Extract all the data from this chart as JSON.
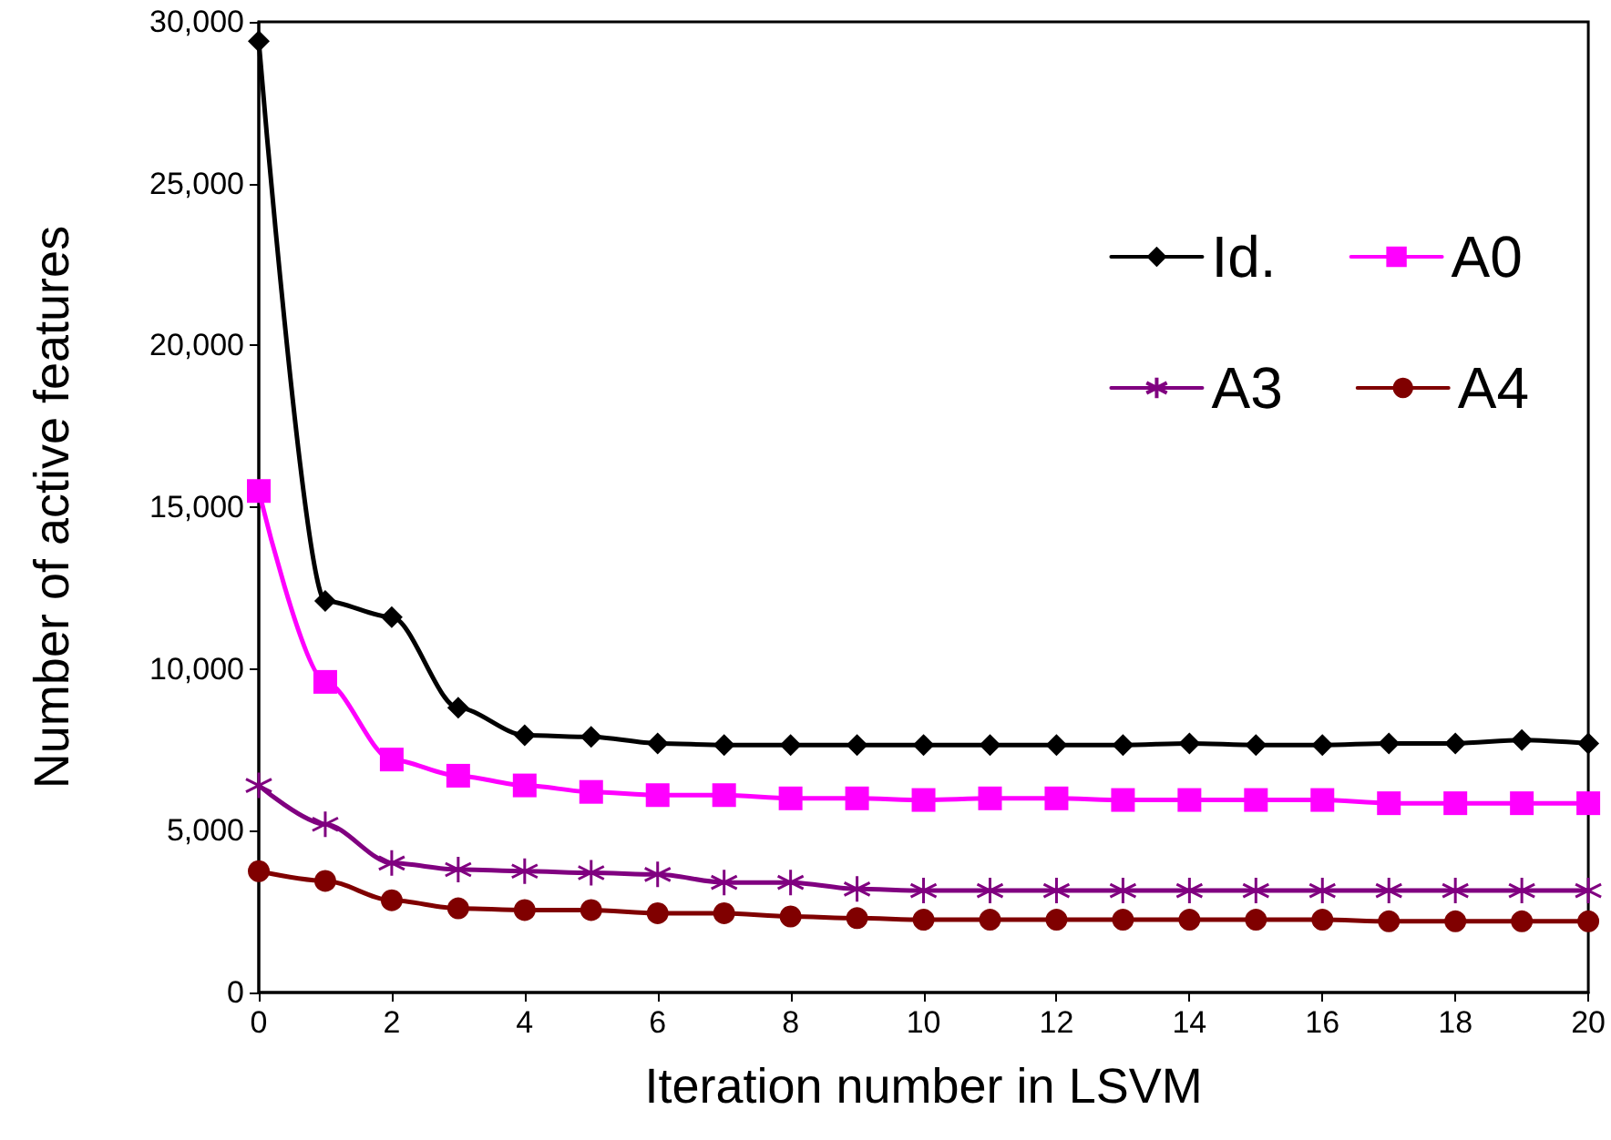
{
  "chart_data": {
    "type": "line",
    "xlabel": "Iteration number in LSVM",
    "ylabel": "Number of active features",
    "x": [
      0,
      1,
      2,
      3,
      4,
      5,
      6,
      7,
      8,
      9,
      10,
      11,
      12,
      13,
      14,
      15,
      16,
      17,
      18,
      19,
      20
    ],
    "xlim": [
      0,
      20
    ],
    "xticks": [
      0,
      2,
      4,
      6,
      8,
      10,
      12,
      14,
      16,
      18,
      20
    ],
    "ylim": [
      0,
      30000
    ],
    "yticks": [
      0,
      {
        "value": 5000,
        "label": "5,000"
      },
      {
        "value": 10000,
        "label": "10,000"
      },
      {
        "value": 15000,
        "label": "15,000"
      },
      {
        "value": 20000,
        "label": "20,000"
      },
      {
        "value": 25000,
        "label": "25,000"
      },
      {
        "value": 30000,
        "label": "30,000"
      }
    ],
    "grid": false,
    "legend": "top right",
    "line_style": "solid",
    "series": [
      {
        "name": "Id.",
        "color": "#000000",
        "marker": "diamond",
        "values": [
          29400,
          12100,
          11600,
          8800,
          7950,
          7900,
          7700,
          7650,
          7650,
          7650,
          7650,
          7650,
          7650,
          7650,
          7700,
          7650,
          7650,
          7700,
          7700,
          7800,
          7700
        ]
      },
      {
        "name": "A0",
        "color": "#ff00ff",
        "marker": "square",
        "values": [
          15500,
          9600,
          7200,
          6700,
          6400,
          6200,
          6100,
          6100,
          6000,
          6000,
          5950,
          6000,
          6000,
          5950,
          5950,
          5950,
          5950,
          5850,
          5850,
          5850,
          5850
        ]
      },
      {
        "name": "A3",
        "color": "#800080",
        "marker": "cross",
        "values": [
          6400,
          5200,
          4000,
          3800,
          3750,
          3700,
          3650,
          3400,
          3400,
          3200,
          3150,
          3150,
          3150,
          3150,
          3150,
          3150,
          3150,
          3150,
          3150,
          3150,
          3150
        ]
      },
      {
        "name": "A4",
        "color": "#800000",
        "marker": "circle",
        "values": [
          3750,
          3450,
          2850,
          2600,
          2550,
          2550,
          2450,
          2450,
          2350,
          2300,
          2250,
          2250,
          2250,
          2250,
          2250,
          2250,
          2250,
          2200,
          2200,
          2200,
          2200
        ]
      }
    ]
  }
}
